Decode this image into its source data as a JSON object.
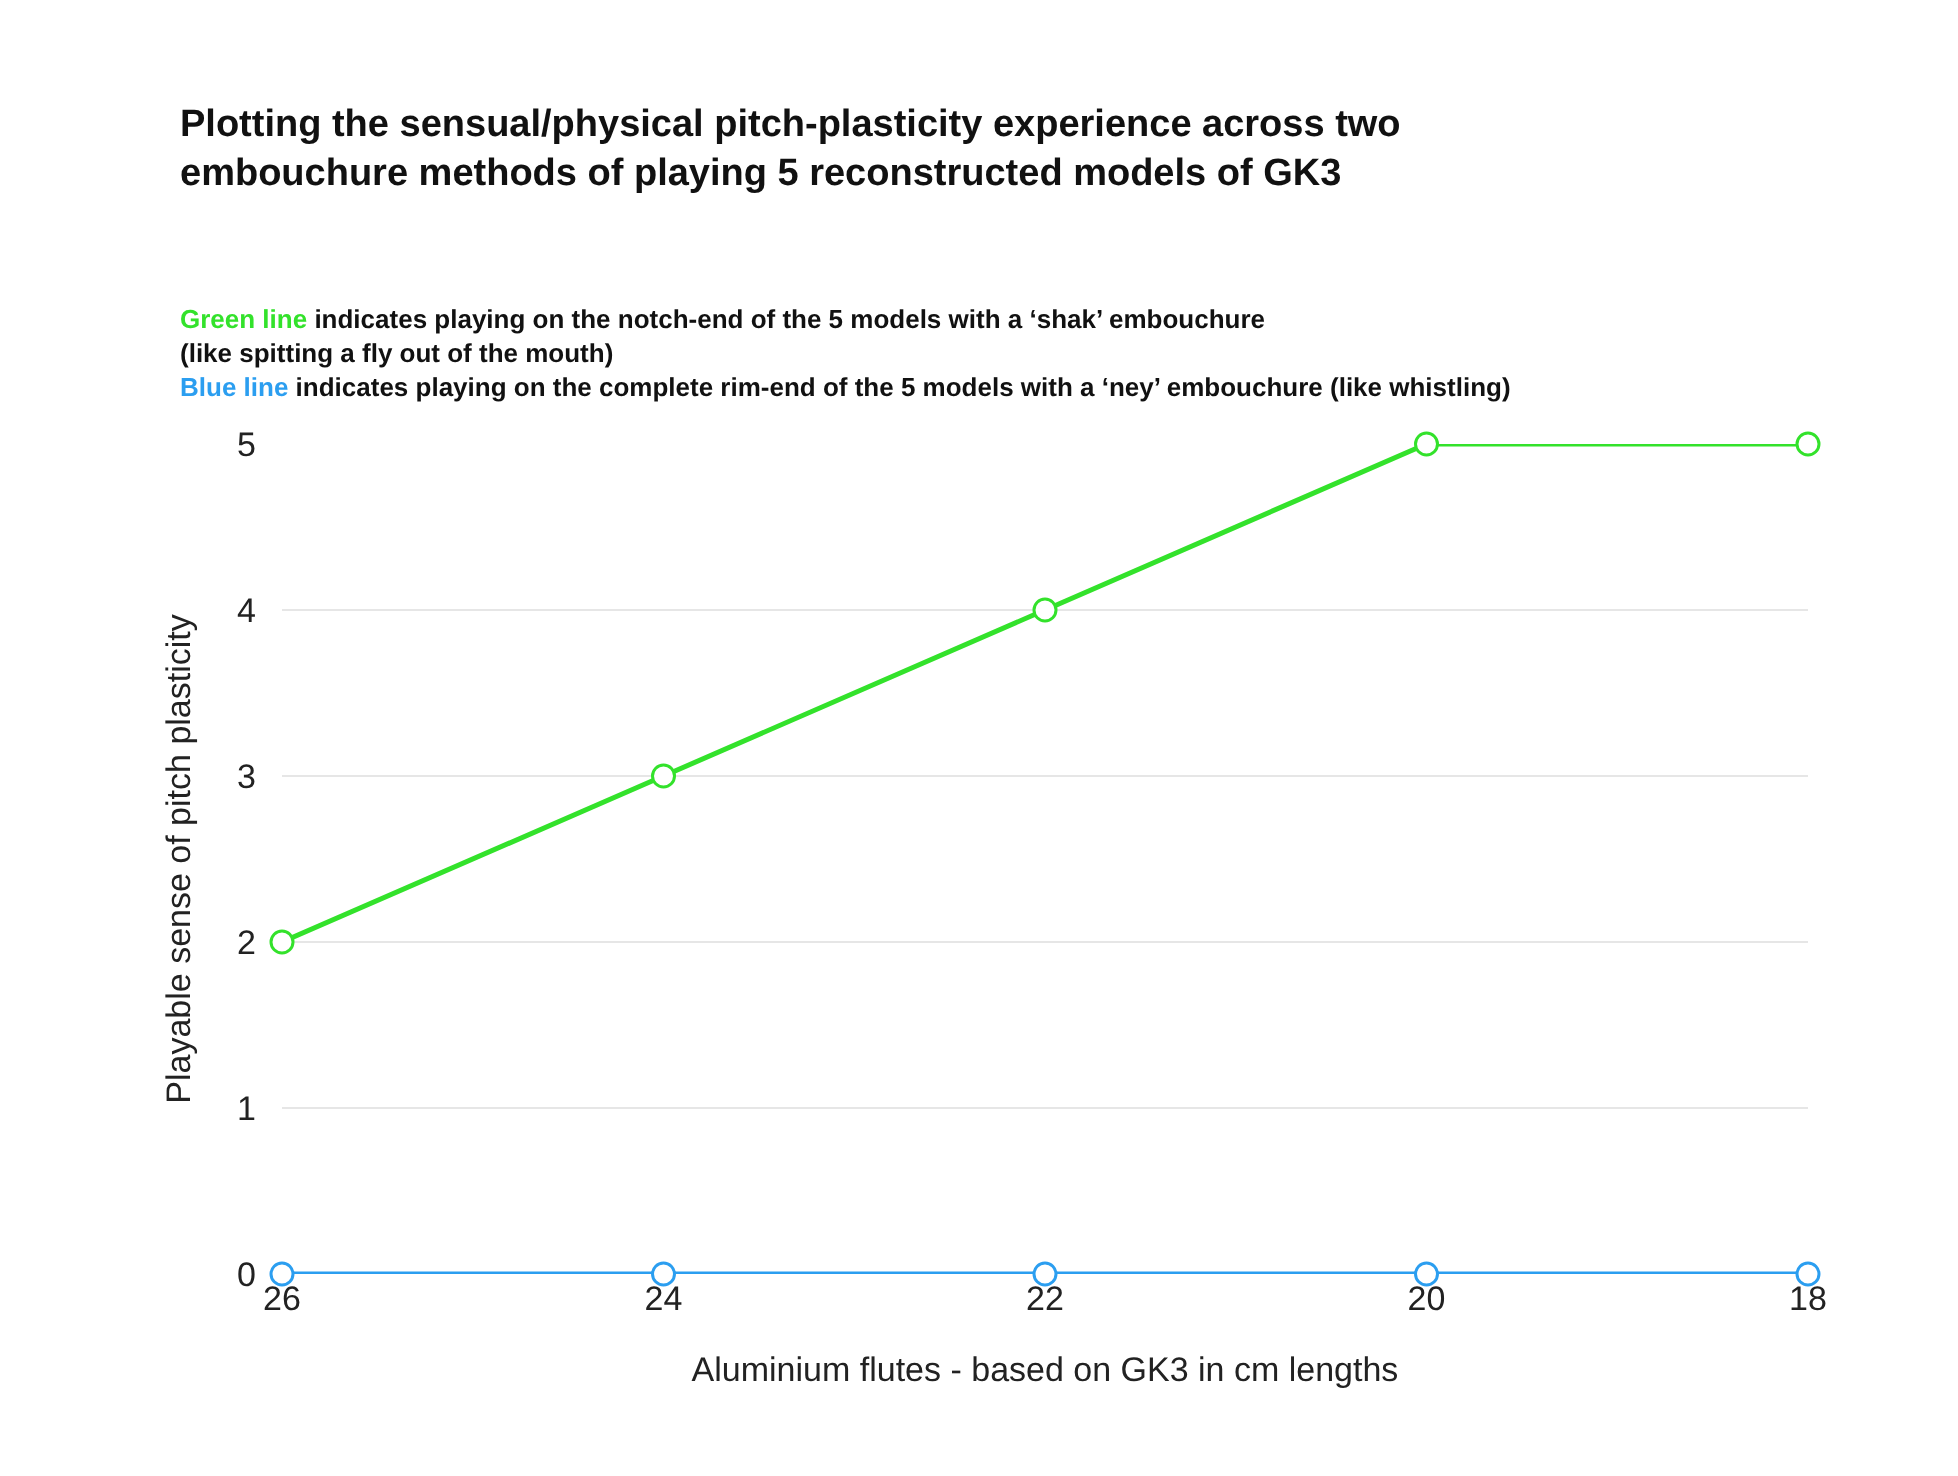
{
  "chart_data": {
    "type": "line",
    "title": "Plotting the sensual/physical pitch-plasticity experience across two embouchure methods of playing 5 reconstructed models of GK3",
    "xlabel": "Aluminium flutes - based on GK3 in cm lengths",
    "ylabel": "Playable sense of pitch plasticity",
    "annotations": [
      "indicates playing on the notch-end of the 5 models with a ‘shak’ embouchure\n(like spitting a fly out of the mouth)",
      "indicates playing on the complete rim-end of the 5 models with a ‘ney’ embouchure (like whistling)"
    ],
    "x": [
      26,
      24,
      22,
      20,
      18
    ],
    "series": [
      {
        "name": "Green line",
        "color": "#33e22b",
        "values": [
          2,
          3,
          4,
          5,
          5
        ]
      },
      {
        "name": "Blue line",
        "color": "#2b9ef0",
        "values": [
          0,
          0,
          0,
          0,
          0
        ]
      }
    ],
    "xlim": [
      26,
      18
    ],
    "xticks": [
      26,
      24,
      22,
      20,
      18
    ],
    "ylim": [
      0,
      5
    ],
    "yticks": [
      0,
      1,
      2,
      3,
      4,
      5
    ],
    "grid": "y",
    "marker": "circle",
    "line_style": "solid"
  }
}
